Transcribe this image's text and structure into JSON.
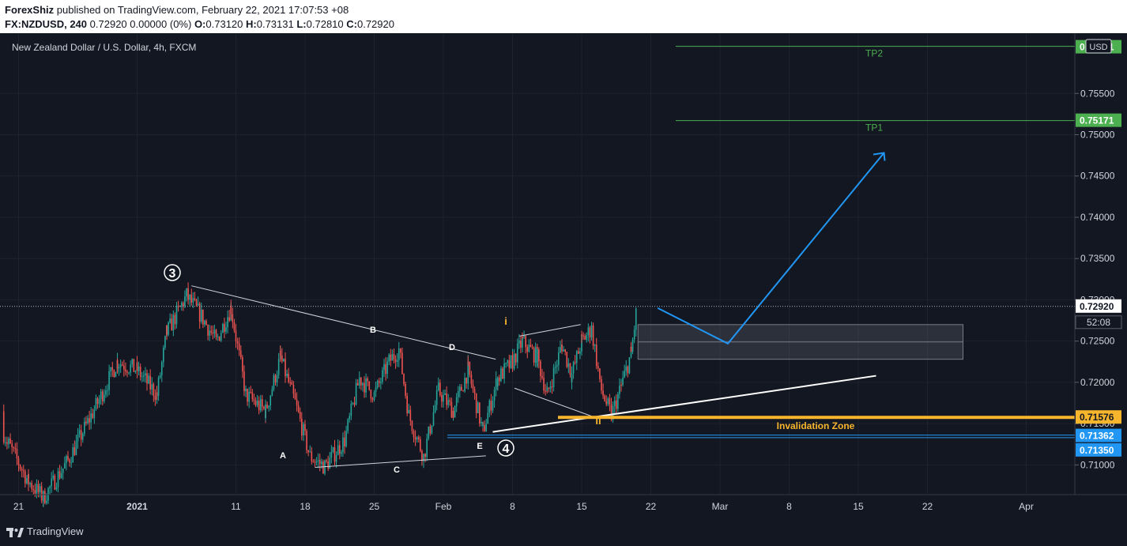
{
  "header": {
    "author": "ForexShiz",
    "published_text": "published on TradingView.com, February 22, 2021 17:07:53 +08",
    "symbol": "FX:NZDUSD, 240",
    "change": "0.72920 0.00000 (0%)",
    "o_label": "O:",
    "o_value": "0.73120",
    "h_label": "H:",
    "h_value": "0.73131",
    "l_label": "L:",
    "l_value": "0.72810",
    "c_label": "C:",
    "c_value": "0.72920"
  },
  "chart_data": {
    "type": "candlestick",
    "title": "New Zealand Dollar / U.S. Dollar, 4h, FXCM",
    "currency": "USD",
    "y_ticks": [
      0.71,
      0.715,
      0.72,
      0.725,
      0.73,
      0.735,
      0.74,
      0.745,
      0.75,
      0.755
    ],
    "y_tick_labels": [
      "0.71000",
      "0.71500",
      "0.72000",
      "0.72500",
      "0.73000",
      "0.73500",
      "0.74000",
      "0.74500",
      "0.75000",
      "0.75500"
    ],
    "x_tick_labels": [
      "21",
      "2021",
      "11",
      "18",
      "25",
      "Feb",
      "8",
      "15",
      "22",
      "Mar",
      "8",
      "15",
      "22",
      "Apr"
    ],
    "x_tick_days": [
      -11,
      1,
      11,
      18,
      25,
      32,
      39,
      46,
      53,
      60,
      67,
      74,
      81,
      91
    ],
    "x_axis_origin": "2021-01-01",
    "ylim": [
      0.7064,
      0.7623
    ],
    "last_price": "0.72920",
    "countdown": "52:08",
    "price_path": [
      [
        -13.5,
        0.7165
      ],
      [
        -12,
        0.7125
      ],
      [
        -10,
        0.708
      ],
      [
        -8.5,
        0.706
      ],
      [
        -6,
        0.7105
      ],
      [
        -3,
        0.7175
      ],
      [
        -1,
        0.7225
      ],
      [
        1,
        0.7215
      ],
      [
        3,
        0.7185
      ],
      [
        4,
        0.726
      ],
      [
        6,
        0.7305
      ],
      [
        7.5,
        0.728
      ],
      [
        9,
        0.725
      ],
      [
        10.5,
        0.729
      ],
      [
        12,
        0.7185
      ],
      [
        14,
        0.7165
      ],
      [
        15.5,
        0.723
      ],
      [
        17,
        0.7175
      ],
      [
        18.5,
        0.711
      ],
      [
        20,
        0.7098
      ],
      [
        22,
        0.713
      ],
      [
        23.5,
        0.7205
      ],
      [
        25,
        0.7185
      ],
      [
        26.5,
        0.7225
      ],
      [
        27.5,
        0.724
      ],
      [
        28.5,
        0.716
      ],
      [
        30,
        0.711
      ],
      [
        31.5,
        0.719
      ],
      [
        33,
        0.7165
      ],
      [
        34.5,
        0.7215
      ],
      [
        36,
        0.714
      ],
      [
        37.5,
        0.7205
      ],
      [
        39,
        0.7225
      ],
      [
        40,
        0.725
      ],
      [
        41.5,
        0.723
      ],
      [
        42.5,
        0.7185
      ],
      [
        44,
        0.7245
      ],
      [
        45,
        0.721
      ],
      [
        46,
        0.725
      ],
      [
        47,
        0.7265
      ],
      [
        48,
        0.719
      ],
      [
        49,
        0.716
      ],
      [
        50,
        0.7195
      ],
      [
        51,
        0.7235
      ],
      [
        52,
        0.733
      ],
      [
        53,
        0.73
      ],
      [
        53.7,
        0.7292
      ]
    ],
    "levels": [
      {
        "name": "TP2",
        "label": "TP2",
        "value": 0.76071,
        "price_label": "0.76071",
        "color": "#4caf50"
      },
      {
        "name": "TP1",
        "label": "TP1",
        "value": 0.75171,
        "price_label": "0.75171",
        "color": "#4caf50"
      },
      {
        "name": "invalidation",
        "label": "Invalidation Zone",
        "value": 0.71576,
        "price_label": "0.71576",
        "color": "#f7b52d"
      },
      {
        "name": "support-1",
        "value": 0.71362,
        "price_label": "0.71362",
        "color": "#2196f3"
      },
      {
        "name": "support-2",
        "value": 0.7135,
        "price_label": "0.71350",
        "color": "#2196f3"
      }
    ],
    "annotations": {
      "wave3": "3",
      "wave4": "4",
      "A": "A",
      "B": "B",
      "C": "C",
      "D": "D",
      "E": "E",
      "i": "i",
      "ii": "ii"
    }
  },
  "footer": {
    "brand": "TradingView"
  }
}
